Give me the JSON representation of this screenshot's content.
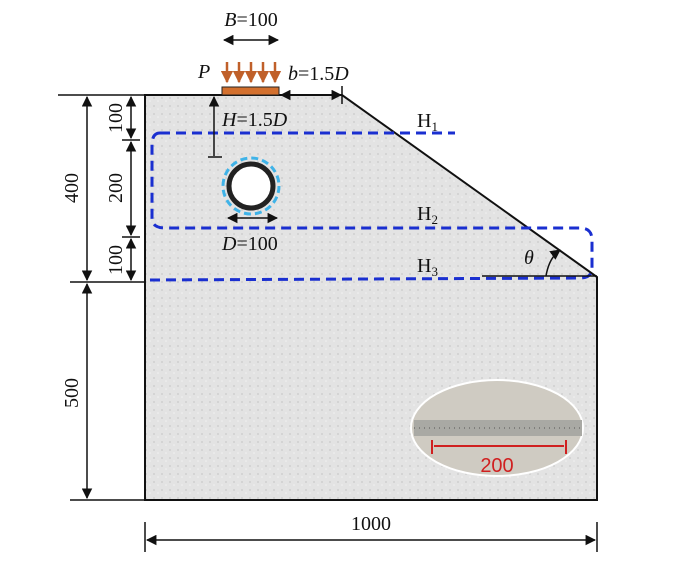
{
  "dimensions": {
    "plate_width": {
      "symbol": "B",
      "value": "=100"
    },
    "load": "P",
    "offset": {
      "symbol": "b",
      "value": "=1.5",
      "unit": "D"
    },
    "depth": {
      "symbol": "H",
      "value": "=1.5",
      "unit": "D"
    },
    "diameter": {
      "symbol": "D",
      "value": "=100"
    },
    "height_total_upper": "400",
    "seg_top": "100",
    "seg_mid": "200",
    "seg_bottom": "100",
    "height_lower": "500",
    "width": "1000",
    "angle": "θ"
  },
  "regions": [
    {
      "symbol": "H",
      "sub": "1"
    },
    {
      "symbol": "H",
      "sub": "2"
    },
    {
      "symbol": "H",
      "sub": "3"
    }
  ],
  "inset": {
    "label": "200"
  }
}
